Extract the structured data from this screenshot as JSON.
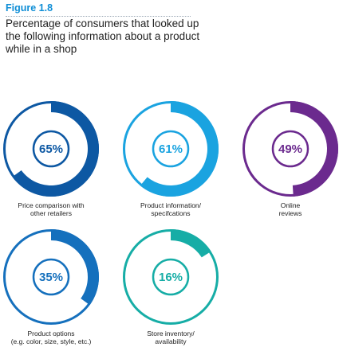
{
  "figure_label": "Figure 1.8",
  "title": "Percentage of consumers that looked up the following information about a product while in a shop",
  "chart_data": {
    "type": "donut",
    "items": [
      {
        "value": 65,
        "label": "65%",
        "caption_lines": [
          "Price comparison with",
          "other retailers"
        ],
        "color": "#0d58a3"
      },
      {
        "value": 61,
        "label": "61%",
        "caption_lines": [
          "Product information/",
          "specifcations"
        ],
        "color": "#1aa3e0"
      },
      {
        "value": 49,
        "label": "49%",
        "caption_lines": [
          "Online",
          "reviews"
        ],
        "color": "#6b2a8e"
      },
      {
        "value": 35,
        "label": "35%",
        "caption_lines": [
          "Product options",
          "(e.g. color, size, style, etc.)"
        ],
        "color": "#1570bd"
      },
      {
        "value": 16,
        "label": "16%",
        "caption_lines": [
          "Store inventory/",
          "availability"
        ],
        "color": "#16ada6"
      }
    ]
  }
}
